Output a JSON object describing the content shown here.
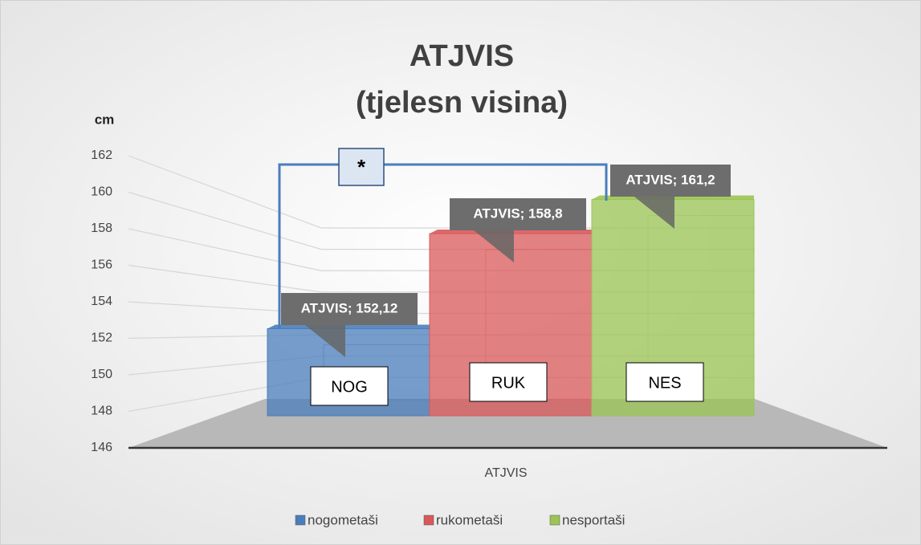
{
  "chart_data": {
    "type": "bar",
    "title": "ATJVIS",
    "subtitle": "(tjelesn visina)",
    "y_label": "cm",
    "categories": [
      "ATJVIS"
    ],
    "series": [
      {
        "name": "nogometaši",
        "color": "#4a7ebb",
        "values": [
          152.12
        ],
        "value_labels": [
          "ATJVIS; 152,12"
        ],
        "annotation": "NOG"
      },
      {
        "name": "rukometaši",
        "color": "#d9585a",
        "values": [
          158.8
        ],
        "value_labels": [
          "ATJVIS; 158,8"
        ],
        "annotation": "RUK"
      },
      {
        "name": "nesportaši",
        "color": "#9bc453",
        "values": [
          161.2
        ],
        "value_labels": [
          "ATJVIS; 161,2"
        ],
        "annotation": "NES"
      }
    ],
    "significance": "*",
    "ylim": [
      146,
      162
    ],
    "yticks": [
      146,
      148,
      150,
      152,
      154,
      156,
      158,
      160,
      162
    ],
    "grid": true,
    "legend": "bottom"
  }
}
